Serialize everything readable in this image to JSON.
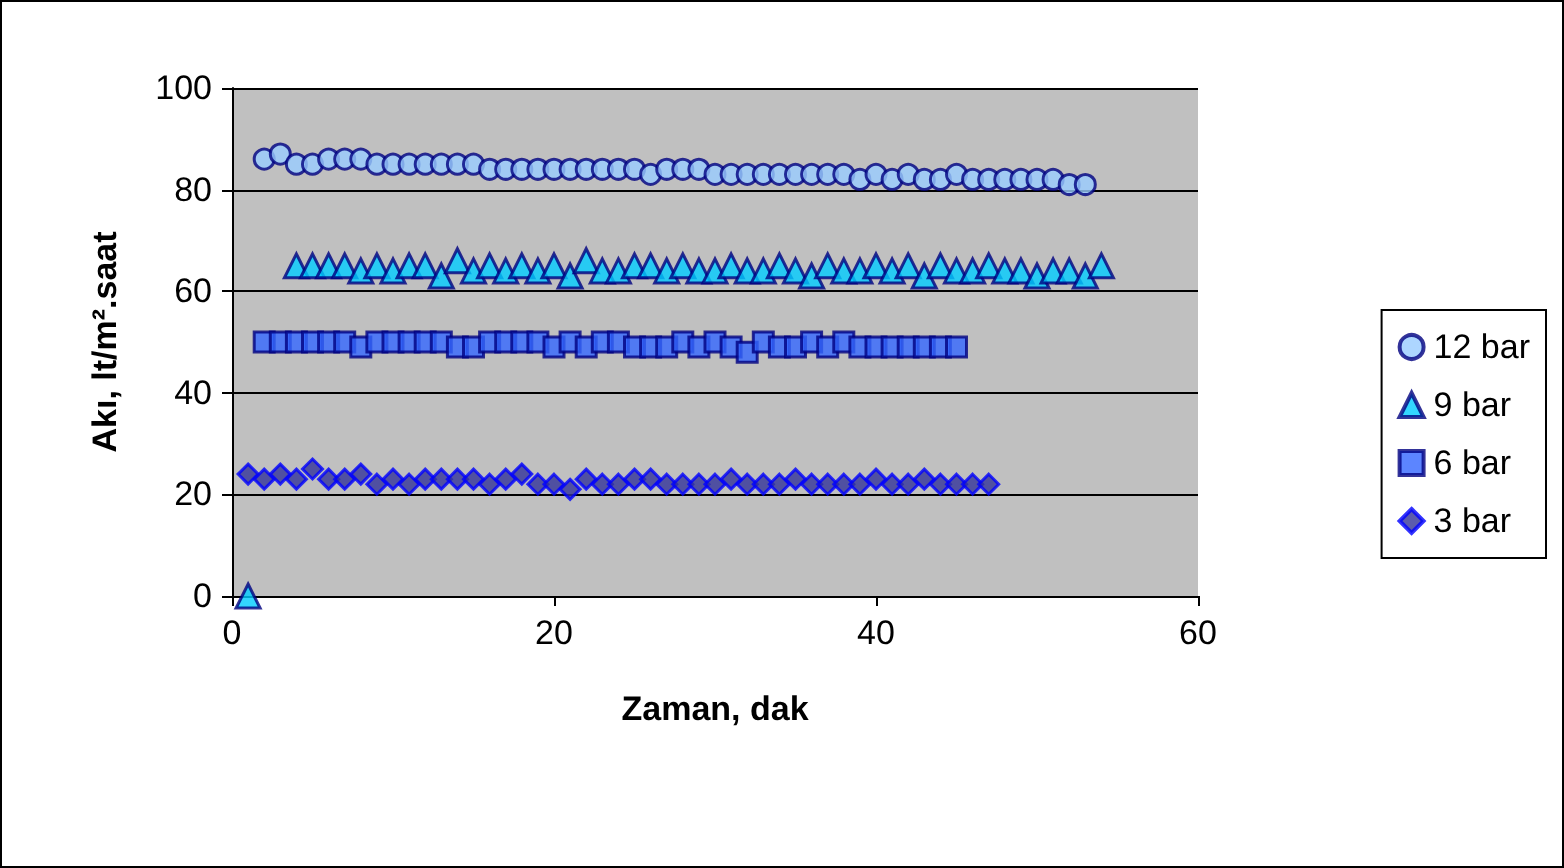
{
  "chart_data": {
    "type": "scatter",
    "xlabel": "Zaman, dak",
    "ylabel": "Akı, lt/m².saat",
    "xlim": [
      0,
      60
    ],
    "xticks": [
      0,
      20,
      40,
      60
    ],
    "ylim": [
      0,
      100
    ],
    "yticks": [
      0,
      20,
      40,
      60,
      80,
      100
    ],
    "grid": "y",
    "legend": "right",
    "x": [
      1,
      2,
      3,
      4,
      5,
      6,
      7,
      8,
      9,
      10,
      11,
      12,
      13,
      14,
      15,
      16,
      17,
      18,
      19,
      20,
      21,
      22,
      23,
      24,
      25,
      26,
      27,
      28,
      29,
      30,
      31,
      32,
      33,
      34,
      35,
      36,
      37,
      38,
      39,
      40,
      41,
      42,
      43,
      44,
      45,
      46,
      47,
      48,
      49,
      50,
      51,
      52,
      53,
      54
    ],
    "series": [
      {
        "name": "12 bar",
        "color": "#99ccff",
        "marker": "circle",
        "values": [
          null,
          86,
          87,
          85,
          85,
          86,
          86,
          86,
          85,
          85,
          85,
          85,
          85,
          85,
          85,
          84,
          84,
          84,
          84,
          84,
          84,
          84,
          84,
          84,
          84,
          83,
          84,
          84,
          84,
          83,
          83,
          83,
          83,
          83,
          83,
          83,
          83,
          83,
          82,
          83,
          82,
          83,
          82,
          82,
          83,
          82,
          82,
          82,
          82,
          82,
          82,
          81,
          81,
          null
        ]
      },
      {
        "name": "9 bar",
        "color": "#00ccff",
        "marker": "triangle",
        "values": [
          0,
          null,
          null,
          65,
          65,
          65,
          65,
          64,
          65,
          64,
          65,
          65,
          63,
          66,
          64,
          65,
          64,
          65,
          64,
          65,
          63,
          66,
          64,
          64,
          65,
          65,
          64,
          65,
          64,
          64,
          65,
          64,
          64,
          65,
          64,
          63,
          65,
          64,
          64,
          65,
          64,
          65,
          63,
          65,
          64,
          64,
          65,
          64,
          64,
          63,
          64,
          64,
          63,
          65
        ]
      },
      {
        "name": "6 bar",
        "color": "#3366ff",
        "marker": "square",
        "values": [
          null,
          50,
          50,
          50,
          50,
          50,
          50,
          49,
          50,
          50,
          50,
          50,
          50,
          49,
          49,
          50,
          50,
          50,
          50,
          49,
          50,
          49,
          50,
          50,
          49,
          49,
          49,
          50,
          49,
          50,
          49,
          48,
          50,
          49,
          49,
          50,
          49,
          50,
          49,
          49,
          49,
          49,
          49,
          49,
          49,
          null,
          null,
          null,
          null,
          null,
          null,
          null,
          null,
          null
        ]
      },
      {
        "name": "3 bar",
        "color": "#333399",
        "marker": "diamond",
        "values": [
          24,
          23,
          24,
          23,
          25,
          23,
          23,
          24,
          22,
          23,
          22,
          23,
          23,
          23,
          23,
          22,
          23,
          24,
          22,
          22,
          21,
          23,
          22,
          22,
          23,
          23,
          22,
          22,
          22,
          22,
          23,
          22,
          22,
          22,
          23,
          22,
          22,
          22,
          22,
          23,
          22,
          22,
          23,
          22,
          22,
          22,
          22,
          null,
          null,
          null,
          null,
          null,
          null,
          null
        ]
      }
    ]
  }
}
